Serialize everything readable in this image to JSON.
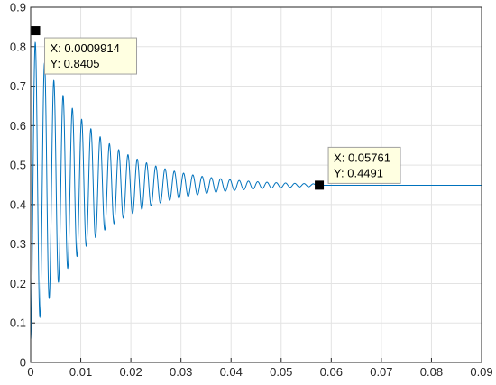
{
  "chart_data": {
    "type": "line",
    "title": "",
    "xlabel": "",
    "ylabel": "",
    "xlim": [
      0,
      0.09
    ],
    "ylim": [
      0,
      0.9
    ],
    "xticks": [
      "0",
      "0.01",
      "0.02",
      "0.03",
      "0.04",
      "0.05",
      "0.06",
      "0.07",
      "0.08",
      "0.09"
    ],
    "yticks": [
      "0",
      "0.1",
      "0.2",
      "0.3",
      "0.4",
      "0.5",
      "0.6",
      "0.7",
      "0.8",
      "0.9"
    ],
    "grid": true,
    "legend": "none",
    "series": [
      {
        "color": "#0072BD",
        "model": "damped_oscillation",
        "x_start": 0,
        "x_end": 0.09,
        "steady_value": 0.449,
        "initial_amplitude": 0.39,
        "decay_time_constant": 0.012,
        "period": 0.00185,
        "settling_x": 0.0576
      }
    ],
    "datatips": [
      {
        "x": 0.0009914,
        "y": 0.8405,
        "label_x": "X: 0.0009914",
        "label_y": "Y: 0.8405"
      },
      {
        "x": 0.05761,
        "y": 0.4491,
        "label_x": "X: 0.05761",
        "label_y": "Y: 0.4491"
      }
    ]
  }
}
